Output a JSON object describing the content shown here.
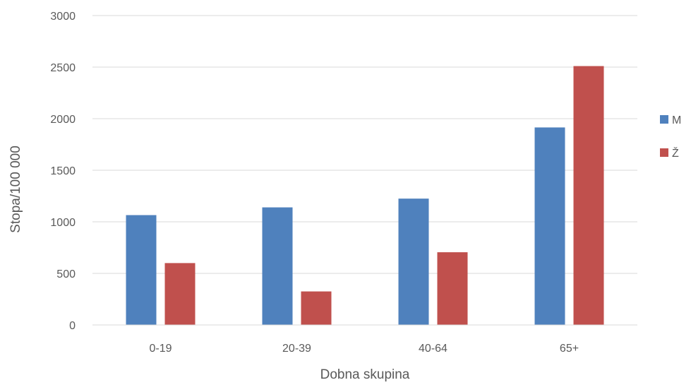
{
  "chart_data": {
    "type": "bar",
    "categories": [
      "0-19",
      "20-39",
      "40-64",
      "65+"
    ],
    "series": [
      {
        "name": "M",
        "color": "#4F81BD",
        "values": [
          1065,
          1140,
          1225,
          1915
        ]
      },
      {
        "name": "Ž",
        "color": "#C0504D",
        "values": [
          600,
          325,
          705,
          2510
        ]
      }
    ],
    "xlabel": "Dobna skupina",
    "ylabel": "Stopa/100 000",
    "ylim": [
      0,
      3000
    ],
    "yticks": [
      "0",
      "500",
      "1000",
      "1500",
      "2000",
      "2500",
      "3000"
    ],
    "grid": true,
    "legend_position": "right"
  }
}
